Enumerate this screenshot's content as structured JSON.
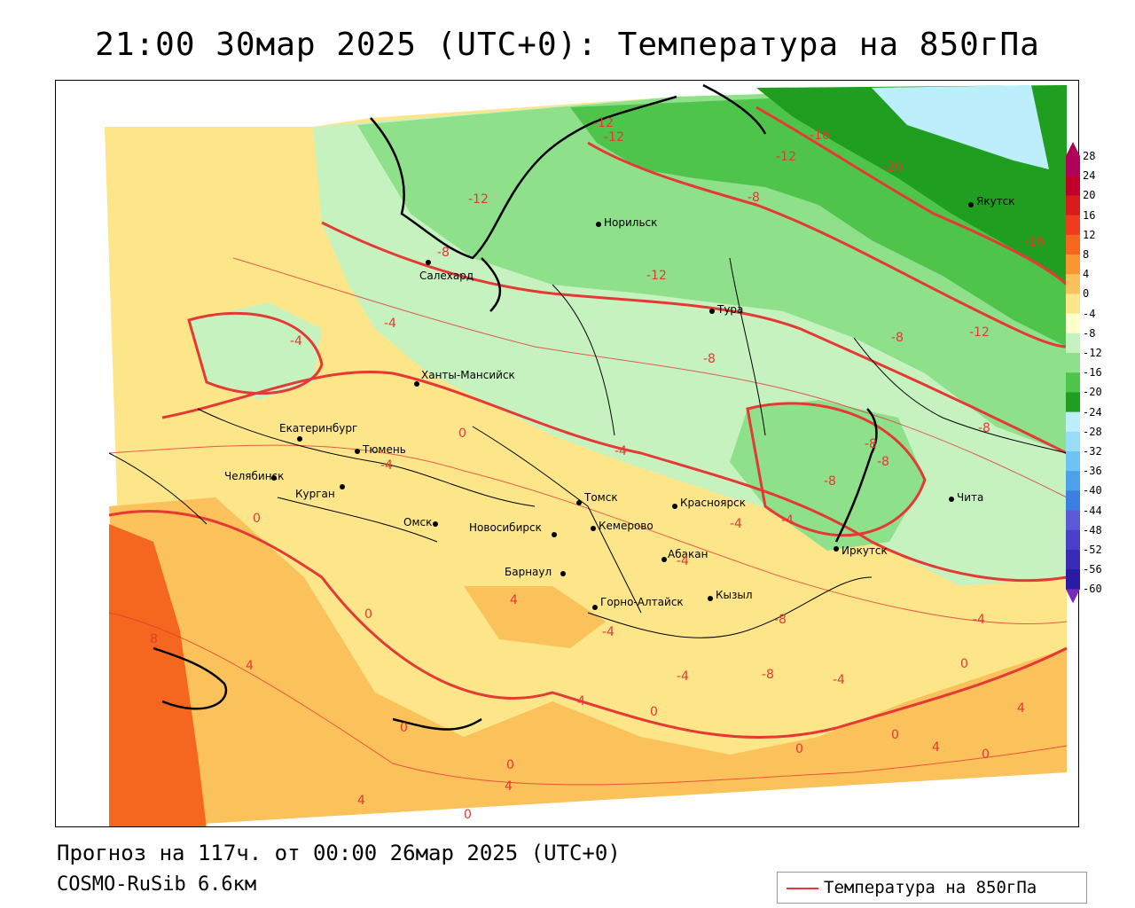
{
  "title": "21:00 30мар 2025 (UTC+0): Температура на 850гПа",
  "footer": {
    "forecast": "Прогноз на 117ч. от 00:00 26мар 2025 (UTC+0)",
    "model": "COSMO-RuSib 6.6км"
  },
  "legend": {
    "label": "Температура на 850гПа",
    "line_color": "#e53935"
  },
  "colorbar": {
    "labels": [
      "28",
      "24",
      "20",
      "16",
      "12",
      "8",
      "4",
      "0",
      "-4",
      "-8",
      "-12",
      "-16",
      "-20",
      "-24",
      "-28",
      "-32",
      "-36",
      "-40",
      "-44",
      "-48",
      "-52",
      "-56",
      "-60"
    ],
    "colors": [
      "#b0005a",
      "#c0002a",
      "#d81b1b",
      "#f03c1e",
      "#f5661e",
      "#fa9632",
      "#fbc15a",
      "#fde68a",
      "#ffffcc",
      "#c6f2c0",
      "#8ee08a",
      "#4fc44a",
      "#1f9e1f",
      "#bdeefc",
      "#98dcf8",
      "#6ec3f2",
      "#4aa3ea",
      "#3b7fe0",
      "#5a5ad6",
      "#4a3fc8",
      "#3a2ab8",
      "#2a1aa8",
      "#7a2ab8"
    ]
  },
  "cities": [
    {
      "name": "Салехард"
    },
    {
      "name": "Норильск"
    },
    {
      "name": "Тура"
    },
    {
      "name": "Якутск"
    },
    {
      "name": "Ханты-Мансийск"
    },
    {
      "name": "Екатеринбург"
    },
    {
      "name": "Тюмень"
    },
    {
      "name": "Челябинск"
    },
    {
      "name": "Курган"
    },
    {
      "name": "Омск"
    },
    {
      "name": "Новосибирск"
    },
    {
      "name": "Томск"
    },
    {
      "name": "Кемерово"
    },
    {
      "name": "Барнаул"
    },
    {
      "name": "Красноярск"
    },
    {
      "name": "Абакан"
    },
    {
      "name": "Кызыл"
    },
    {
      "name": "Горно-Алтайск"
    },
    {
      "name": "Иркутск"
    },
    {
      "name": "Чита"
    }
  ],
  "isotherm_labels": [
    "-12",
    "-12",
    "-16",
    "-12",
    "-20",
    "-12",
    "-8",
    "-8",
    "-12",
    "-16",
    "-12",
    "-8",
    "-4",
    "-4",
    "-8",
    "0",
    "-4",
    "-4",
    "-8",
    "-8",
    "-8",
    "-4",
    "-8",
    "-4",
    "0",
    "4",
    "0",
    "-4",
    "-8",
    "-8",
    "-4",
    "-4",
    "0",
    "4",
    "0",
    "0",
    "4",
    "0",
    "4",
    "0",
    "0",
    "4",
    "8",
    "4",
    "4",
    "0",
    "0",
    "-4",
    "-4"
  ]
}
